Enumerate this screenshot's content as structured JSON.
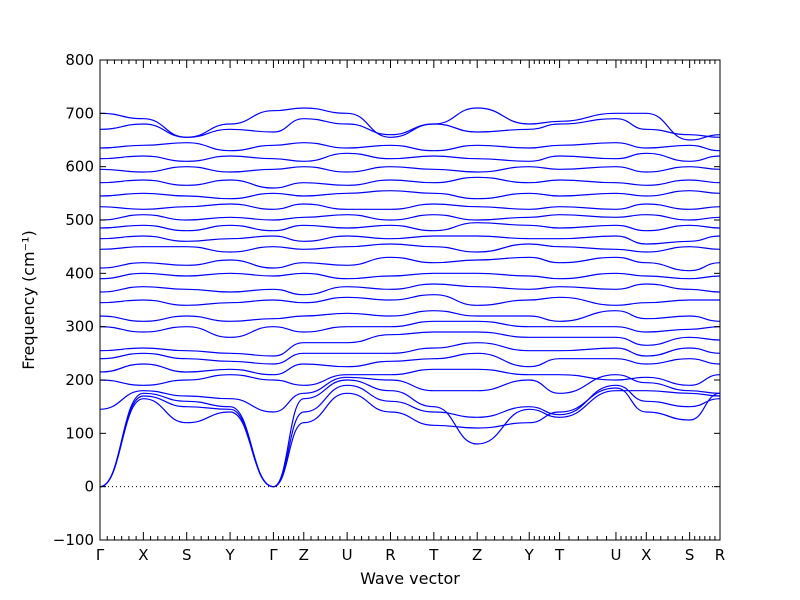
{
  "chart_data": {
    "type": "line",
    "xlabel": "Wave vector",
    "ylabel": "Frequency (cm⁻¹)",
    "ylim": [
      -100,
      800
    ],
    "y_ticks": [
      -100,
      0,
      100,
      200,
      300,
      400,
      500,
      600,
      700,
      800
    ],
    "y_tick_labels": [
      "−100",
      "0",
      "100",
      "200",
      "300",
      "400",
      "500",
      "600",
      "700",
      "800"
    ],
    "x_ticks": [
      {
        "label": "Γ",
        "x": 0
      },
      {
        "label": "X",
        "x": 1
      },
      {
        "label": "S",
        "x": 2
      },
      {
        "label": "Y",
        "x": 3
      },
      {
        "label": "Γ",
        "x": 4
      },
      {
        "label": "Z",
        "x": 4.7
      },
      {
        "label": "U",
        "x": 5.7
      },
      {
        "label": "R",
        "x": 6.7
      },
      {
        "label": "T",
        "x": 7.7
      },
      {
        "label": "Z",
        "x": 8.7
      },
      {
        "label": "Y",
        "x": 9.9
      },
      {
        "label": "T",
        "x": 10.6
      },
      {
        "label": "U",
        "x": 11.9
      },
      {
        "label": "X",
        "x": 12.6
      },
      {
        "label": "S",
        "x": 13.6
      },
      {
        "label": "R",
        "x": 14.3
      }
    ],
    "xlim": [
      0,
      14.3
    ],
    "zero_line": true,
    "grid": false,
    "line_color": "#0000ff",
    "series": [
      {
        "y": [
          0,
          165,
          120,
          140,
          0,
          120,
          175,
          140,
          115,
          110,
          120,
          140,
          185,
          140,
          125,
          175
        ]
      },
      {
        "y": [
          0,
          170,
          150,
          145,
          0,
          140,
          190,
          160,
          140,
          130,
          150,
          135,
          190,
          160,
          150,
          165
        ]
      },
      {
        "y": [
          0,
          175,
          160,
          150,
          0,
          165,
          200,
          180,
          150,
          80,
          145,
          130,
          180,
          180,
          175,
          170
        ]
      },
      {
        "y": [
          145,
          180,
          170,
          165,
          140,
          175,
          205,
          200,
          180,
          180,
          200,
          175,
          210,
          195,
          180,
          175
        ]
      },
      {
        "y": [
          200,
          190,
          200,
          210,
          200,
          190,
          210,
          210,
          220,
          220,
          210,
          210,
          200,
          205,
          190,
          210
        ]
      },
      {
        "y": [
          215,
          230,
          215,
          220,
          210,
          230,
          225,
          235,
          240,
          250,
          225,
          240,
          240,
          230,
          240,
          230
        ]
      },
      {
        "y": [
          240,
          250,
          240,
          235,
          230,
          250,
          250,
          250,
          260,
          270,
          255,
          255,
          260,
          245,
          260,
          250
        ]
      },
      {
        "y": [
          255,
          260,
          255,
          250,
          245,
          270,
          270,
          285,
          290,
          290,
          280,
          280,
          280,
          265,
          280,
          275
        ]
      },
      {
        "y": [
          300,
          290,
          300,
          280,
          300,
          290,
          300,
          300,
          310,
          310,
          300,
          300,
          300,
          290,
          295,
          300
        ]
      },
      {
        "y": [
          320,
          310,
          320,
          310,
          315,
          320,
          325,
          320,
          330,
          320,
          320,
          310,
          330,
          315,
          320,
          310
        ]
      },
      {
        "y": [
          345,
          350,
          340,
          345,
          350,
          345,
          355,
          350,
          360,
          340,
          350,
          355,
          340,
          345,
          350,
          350
        ]
      },
      {
        "y": [
          365,
          375,
          370,
          365,
          370,
          360,
          375,
          370,
          380,
          375,
          370,
          375,
          370,
          380,
          370,
          365
        ]
      },
      {
        "y": [
          390,
          400,
          395,
          400,
          395,
          400,
          390,
          395,
          400,
          400,
          395,
          390,
          400,
          395,
          390,
          395
        ]
      },
      {
        "y": [
          410,
          420,
          415,
          425,
          410,
          420,
          415,
          430,
          420,
          425,
          430,
          420,
          430,
          420,
          405,
          420
        ]
      },
      {
        "y": [
          445,
          450,
          450,
          440,
          450,
          445,
          450,
          455,
          450,
          440,
          455,
          450,
          445,
          440,
          450,
          445
        ]
      },
      {
        "y": [
          465,
          470,
          460,
          465,
          470,
          460,
          470,
          465,
          470,
          470,
          465,
          465,
          470,
          455,
          460,
          470
        ]
      },
      {
        "y": [
          485,
          490,
          480,
          490,
          480,
          490,
          485,
          490,
          480,
          495,
          490,
          485,
          490,
          480,
          490,
          485
        ]
      },
      {
        "y": [
          500,
          510,
          500,
          505,
          500,
          505,
          510,
          500,
          510,
          500,
          505,
          510,
          505,
          510,
          500,
          505
        ]
      },
      {
        "y": [
          525,
          520,
          525,
          530,
          520,
          530,
          520,
          520,
          530,
          525,
          520,
          525,
          520,
          530,
          520,
          525
        ]
      },
      {
        "y": [
          545,
          550,
          545,
          540,
          550,
          545,
          550,
          555,
          550,
          540,
          550,
          545,
          550,
          545,
          555,
          550
        ]
      },
      {
        "y": [
          570,
          575,
          565,
          575,
          560,
          570,
          565,
          575,
          570,
          580,
          570,
          575,
          570,
          565,
          575,
          570
        ]
      },
      {
        "y": [
          595,
          590,
          600,
          590,
          595,
          600,
          590,
          600,
          595,
          590,
          600,
          595,
          600,
          590,
          600,
          595
        ]
      },
      {
        "y": [
          615,
          620,
          610,
          620,
          615,
          610,
          625,
          615,
          620,
          615,
          610,
          620,
          615,
          625,
          610,
          620
        ]
      },
      {
        "y": [
          635,
          640,
          645,
          630,
          640,
          645,
          635,
          640,
          630,
          640,
          635,
          640,
          645,
          635,
          640,
          630
        ]
      },
      {
        "y": [
          670,
          680,
          655,
          670,
          665,
          690,
          680,
          660,
          680,
          665,
          670,
          680,
          690,
          670,
          660,
          655
        ]
      },
      {
        "y": [
          700,
          690,
          655,
          680,
          705,
          710,
          700,
          655,
          680,
          710,
          680,
          685,
          700,
          700,
          650,
          660
        ]
      }
    ]
  }
}
